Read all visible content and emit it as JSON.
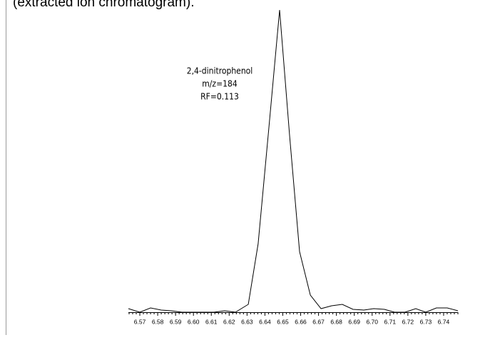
{
  "chart_data": {
    "type": "line",
    "caption": "(extracted ion chromatogram).",
    "annotation": [
      "2,4-dinitrophenol",
      "m/z=184",
      "RF=0.113"
    ],
    "x": [
      6.5636,
      6.57,
      6.576,
      6.582,
      6.5876,
      6.5935,
      6.5995,
      6.6051,
      6.6115,
      6.6175,
      6.6235,
      6.6307,
      6.6362,
      6.6422,
      6.6482,
      6.6538,
      6.6594,
      6.6654,
      6.6714,
      6.6773,
      6.6833,
      6.6893,
      6.6953,
      6.7009,
      6.7069,
      6.7125,
      6.7184,
      6.7244,
      6.73,
      6.736,
      6.742,
      6.748
    ],
    "series": [
      {
        "color": "#000000",
        "values": [
          5,
          0,
          6,
          3,
          2,
          0,
          0,
          0,
          0,
          2,
          0,
          11,
          96,
          258,
          424,
          248,
          85,
          24,
          5,
          9,
          11,
          4,
          3,
          5,
          4,
          0,
          0,
          5,
          0,
          6,
          6,
          2
        ]
      }
    ],
    "xlim": [
      6.5636,
      6.748
    ],
    "xticks": [
      6.57,
      6.58,
      6.59,
      {
        "value": 6.6,
        "label": "6.60"
      },
      6.61,
      6.62,
      6.63,
      6.64,
      6.65,
      6.66,
      6.67,
      6.68,
      6.69,
      {
        "value": 6.7,
        "label": "6.70"
      },
      6.71,
      6.72,
      6.73,
      6.74
    ]
  }
}
